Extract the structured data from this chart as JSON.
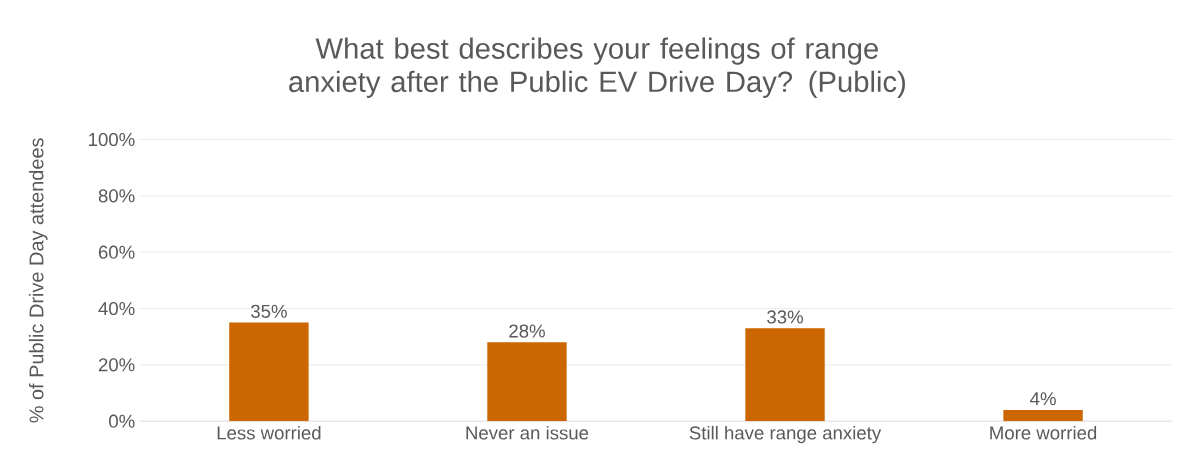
{
  "chart_data": {
    "type": "bar",
    "title": "What best describes your feelings of range anxiety after the Public EV Drive Day? (Public)",
    "ylabel": "% of Public Drive Day attendees",
    "categories": [
      "Less worried",
      "Never an issue",
      "Still have range anxiety",
      "More worried"
    ],
    "values": [
      35,
      28,
      33,
      4
    ],
    "value_labels": [
      "35%",
      "28%",
      "33%",
      "4%"
    ],
    "color": "#cc6600",
    "ylim": [
      0,
      100
    ],
    "yticks": [
      {
        "value": 0,
        "label": "0%"
      },
      {
        "value": 20,
        "label": "20%"
      },
      {
        "value": 40,
        "label": "40%"
      },
      {
        "value": 60,
        "label": "60%"
      },
      {
        "value": 80,
        "label": "80%"
      },
      {
        "value": 100,
        "label": "100%"
      }
    ],
    "grid": "y"
  }
}
